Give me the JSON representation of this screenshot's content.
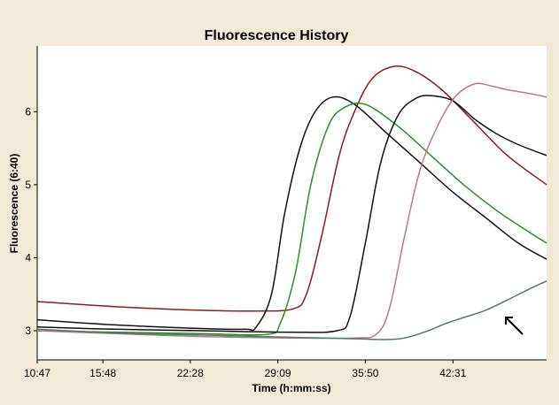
{
  "chart_data": {
    "type": "line",
    "title": "Fluorescence History",
    "xlabel": "Time (h:mm:ss)",
    "ylabel": "Fluorescence (6:40)",
    "x_ticks": [
      "10:47",
      "15:48",
      "22:28",
      "29:09",
      "35:50",
      "42:31"
    ],
    "x_tick_seconds": [
      647,
      948,
      1348,
      1749,
      2150,
      2551
    ],
    "xlim": [
      647,
      2980
    ],
    "y_ticks": [
      3,
      4,
      5,
      6
    ],
    "ylim": [
      2.6,
      6.9
    ],
    "grid": false,
    "series": [
      {
        "color": "#8b1c1c",
        "x": [
          647,
          1000,
          1400,
          1650,
          1820,
          1880,
          1950,
          2030,
          2100,
          2180,
          2280,
          2380,
          2500,
          2650,
          2800,
          2980
        ],
        "y": [
          3.4,
          3.33,
          3.28,
          3.27,
          3.3,
          3.5,
          4.3,
          5.4,
          6.0,
          6.45,
          6.62,
          6.55,
          6.3,
          5.85,
          5.4,
          5.0
        ]
      },
      {
        "color": "#111111",
        "x": [
          647,
          1000,
          1400,
          1600,
          1650,
          1720,
          1780,
          1850,
          1920,
          2000,
          2100,
          2250,
          2400,
          2550,
          2700,
          2850,
          2980
        ],
        "y": [
          3.15,
          3.08,
          3.03,
          3.02,
          3.05,
          3.5,
          4.6,
          5.5,
          6.0,
          6.2,
          6.1,
          5.7,
          5.3,
          4.9,
          4.55,
          4.2,
          3.98
        ]
      },
      {
        "color": "#2e8b2e",
        "x": [
          647,
          1000,
          1400,
          1700,
          1760,
          1830,
          1900,
          1980,
          2050,
          2150,
          2300,
          2450,
          2600,
          2750,
          2900,
          2980
        ],
        "y": [
          3.0,
          2.98,
          2.96,
          2.95,
          3.1,
          3.8,
          5.0,
          5.8,
          6.05,
          6.1,
          5.8,
          5.4,
          5.0,
          4.65,
          4.35,
          4.2
        ]
      },
      {
        "color": "#111111",
        "x": [
          647,
          1000,
          1400,
          1800,
          2020,
          2080,
          2150,
          2220,
          2300,
          2380,
          2450,
          2550,
          2650,
          2750,
          2850,
          2980
        ],
        "y": [
          3.05,
          3.02,
          3.0,
          2.98,
          3.0,
          3.2,
          4.2,
          5.3,
          5.95,
          6.18,
          6.22,
          6.15,
          5.9,
          5.7,
          5.55,
          5.4
        ]
      },
      {
        "color": "#b8788a",
        "x": [
          647,
          1000,
          1400,
          1800,
          2100,
          2200,
          2260,
          2330,
          2400,
          2480,
          2560,
          2650,
          2730,
          2800,
          2900,
          2980
        ],
        "y": [
          3.0,
          2.96,
          2.92,
          2.9,
          2.9,
          2.95,
          3.3,
          4.3,
          5.2,
          5.8,
          6.2,
          6.38,
          6.35,
          6.3,
          6.25,
          6.2
        ]
      },
      {
        "color": "#4e7a66",
        "x": [
          647,
          1000,
          1400,
          1800,
          2100,
          2200,
          2260,
          2330,
          2420,
          2520,
          2600,
          2700,
          2800,
          2900,
          2980
        ],
        "y": [
          3.02,
          2.97,
          2.94,
          2.91,
          2.89,
          2.88,
          2.88,
          2.9,
          2.98,
          3.1,
          3.18,
          3.28,
          3.42,
          3.57,
          3.68
        ]
      }
    ]
  }
}
